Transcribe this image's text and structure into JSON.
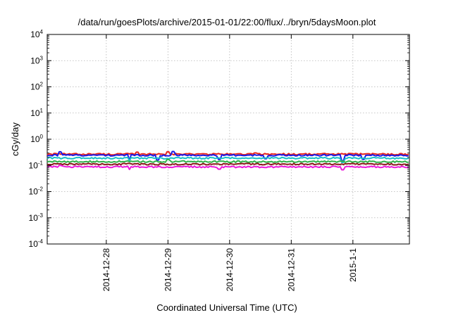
{
  "chart_data": {
    "type": "line",
    "title": "/data/run/goesPlots/archive/2015-01-01/22:00/flux/../bryn/5daysMoon.plot",
    "xlabel": "Coordinated Universal Time (UTC)",
    "ylabel": "cGy/day",
    "y_scale": "log",
    "ylim": [
      0.0001,
      10000
    ],
    "y_ticks": [
      {
        "value": 0.0001,
        "base": "10",
        "exp": "-4"
      },
      {
        "value": 0.001,
        "base": "10",
        "exp": "-3"
      },
      {
        "value": 0.01,
        "base": "10",
        "exp": "-2"
      },
      {
        "value": 0.1,
        "base": "10",
        "exp": "-1"
      },
      {
        "value": 1,
        "base": "10",
        "exp": "0"
      },
      {
        "value": 10,
        "base": "10",
        "exp": "1"
      },
      {
        "value": 100,
        "base": "10",
        "exp": "2"
      },
      {
        "value": 1000,
        "base": "10",
        "exp": "3"
      },
      {
        "value": 10000,
        "base": "10",
        "exp": "4"
      }
    ],
    "xlim": [
      "2014-12-27 01:00",
      "2015-01-01 22:00"
    ],
    "x_ticks": [
      "2014-12-28",
      "2014-12-29",
      "2014-12-30",
      "2014-12-31",
      "2015-1-1"
    ],
    "x_tick_dates": [
      "2014-12-28 00:00",
      "2014-12-29 00:00",
      "2014-12-30 00:00",
      "2014-12-31 00:00",
      "2015-01-01 00:00"
    ],
    "grid": true,
    "legend": "none",
    "series": [
      {
        "color": "#e8241c",
        "base": 0.27,
        "dips": [],
        "bumps": [
          [
            "2014-12-28 12:00",
            0.32
          ],
          [
            "2014-12-29 00:00",
            0.33
          ],
          [
            "2014-12-30 10:00",
            0.3
          ]
        ]
      },
      {
        "color": "#1a1ae6",
        "base": 0.245,
        "dips": [
          [
            "2014-12-28 09:00",
            0.15
          ],
          [
            "2014-12-28 20:00",
            0.16
          ],
          [
            "2014-12-29 20:00",
            0.17
          ],
          [
            "2014-12-30 14:00",
            0.18
          ],
          [
            "2014-12-31 20:00",
            0.15
          ],
          [
            "2015-01-01 04:00",
            0.17
          ]
        ],
        "bumps": [
          [
            "2014-12-27 06:00",
            0.33
          ],
          [
            "2014-12-29 02:00",
            0.34
          ]
        ]
      },
      {
        "color": "#19bfc8",
        "base": 0.19,
        "dips": [
          [
            "2014-12-28 09:00",
            0.15
          ],
          [
            "2014-12-31 20:00",
            0.13
          ]
        ],
        "bumps": []
      },
      {
        "color": "#2fb24a",
        "base": 0.14,
        "dips": [],
        "bumps": [
          [
            "2014-12-29 00:00",
            0.17
          ]
        ]
      },
      {
        "color": "#8b1a1a",
        "base": 0.112,
        "dips": [],
        "bumps": []
      },
      {
        "color": "#ee19dc",
        "base": 0.088,
        "dips": [
          [
            "2014-12-28 09:00",
            0.07
          ],
          [
            "2014-12-29 20:00",
            0.072
          ],
          [
            "2014-12-31 20:00",
            0.068
          ]
        ],
        "bumps": [
          [
            "2014-12-27 06:00",
            0.1
          ]
        ]
      }
    ]
  }
}
